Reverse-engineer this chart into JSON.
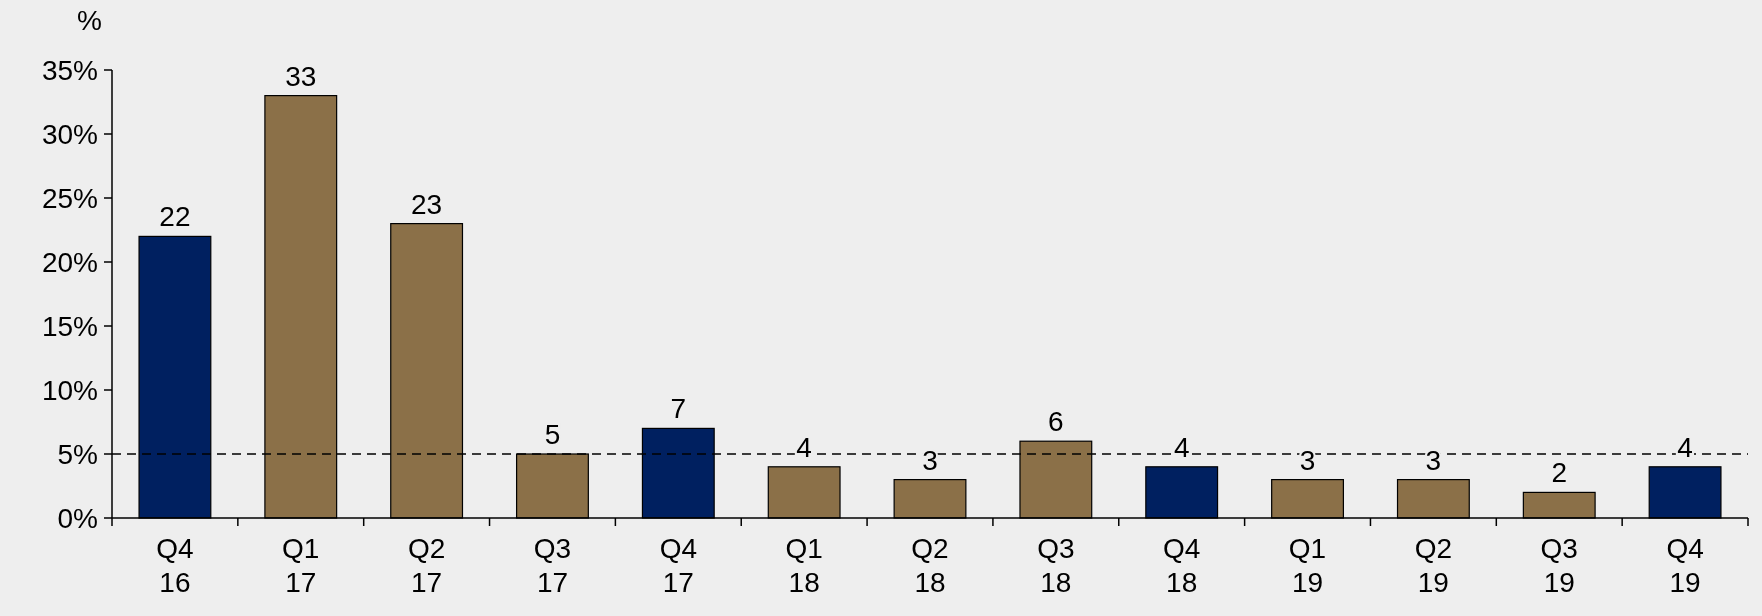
{
  "chart_data": {
    "type": "bar",
    "ylabel": "%",
    "categories": [
      "Q4\n16",
      "Q1\n17",
      "Q2\n17",
      "Q3\n17",
      "Q4\n17",
      "Q1\n18",
      "Q2\n18",
      "Q3\n18",
      "Q4\n18",
      "Q1\n19",
      "Q2\n19",
      "Q3\n19",
      "Q4\n19"
    ],
    "values": [
      22,
      33,
      23,
      5,
      7,
      4,
      3,
      6,
      4,
      3,
      3,
      2,
      4
    ],
    "colors": [
      "#002060",
      "#8b7048",
      "#8b7048",
      "#8b7048",
      "#002060",
      "#8b7048",
      "#8b7048",
      "#8b7048",
      "#002060",
      "#8b7048",
      "#8b7048",
      "#8b7048",
      "#002060"
    ],
    "ylim": [
      0,
      35
    ],
    "yticks": [
      {
        "value": 0,
        "label": "0%"
      },
      {
        "value": 5,
        "label": "5%"
      },
      {
        "value": 10,
        "label": "10%"
      },
      {
        "value": 15,
        "label": "15%"
      },
      {
        "value": 20,
        "label": "20%"
      },
      {
        "value": 25,
        "label": "25%"
      },
      {
        "value": 30,
        "label": "30%"
      },
      {
        "value": 35,
        "label": "35%"
      }
    ],
    "ref_lines": [
      {
        "axis": "y",
        "value": 5,
        "color": "#000000",
        "line_style": "dashed"
      }
    ],
    "data_labels": true
  }
}
